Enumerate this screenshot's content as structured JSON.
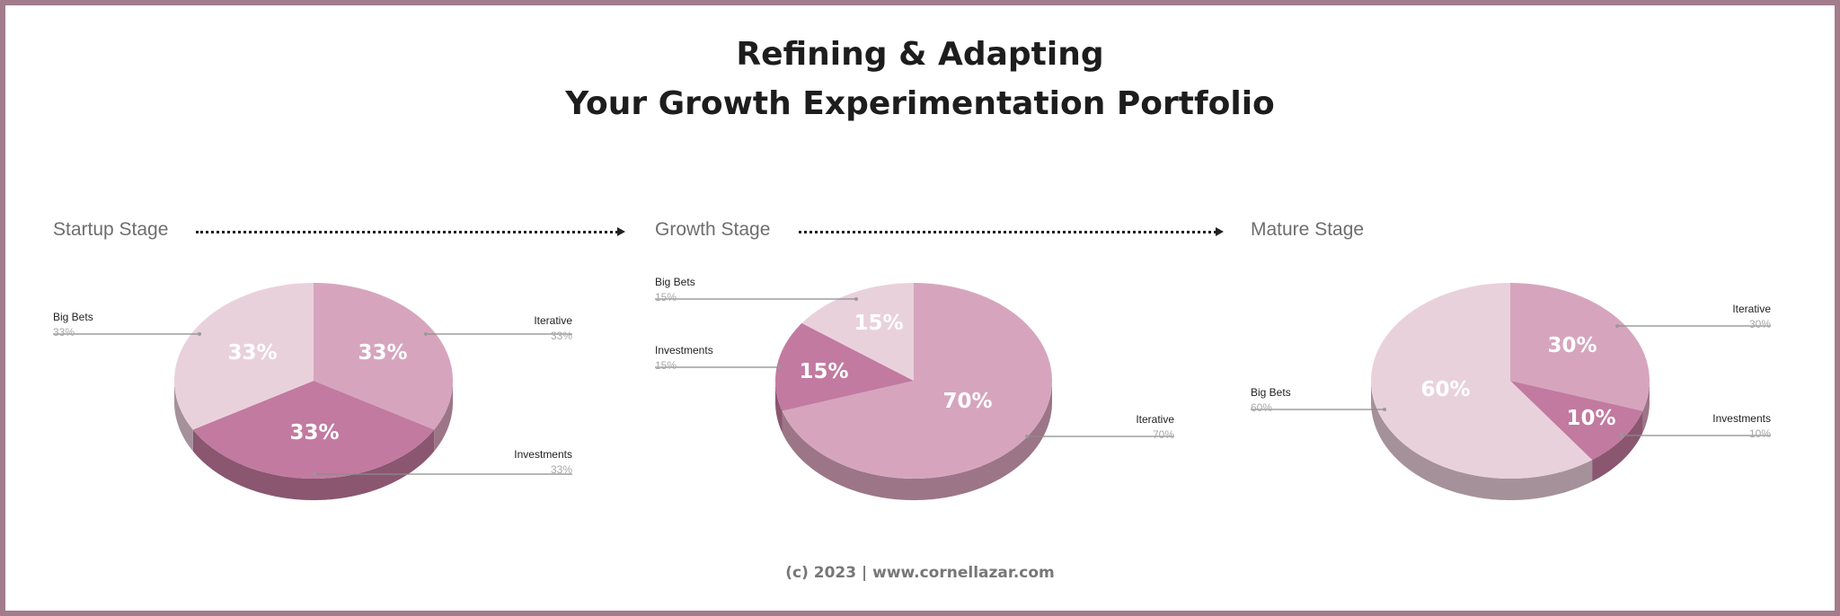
{
  "title": {
    "line1": "Refining & Adapting",
    "line2": "Your Growth Experimentation Portfolio"
  },
  "footer": "(c) 2023 | www.cornellazar.com",
  "colors": {
    "Iterative": "#d6a5bd",
    "Investments": "#c27aa0",
    "Big Bets": "#e9d1dc",
    "side_Iterative": "#9c7586",
    "side_Investments": "#8a5670",
    "side_Big Bets": "#a5919a"
  },
  "chart_data": [
    {
      "type": "pie",
      "title": "Startup Stage",
      "slices": [
        {
          "label": "Iterative",
          "value": 33,
          "text": "33%"
        },
        {
          "label": "Investments",
          "value": 33,
          "text": "33%"
        },
        {
          "label": "Big Bets",
          "value": 33,
          "text": "33%"
        }
      ]
    },
    {
      "type": "pie",
      "title": "Growth Stage",
      "slices": [
        {
          "label": "Iterative",
          "value": 70,
          "text": "70%"
        },
        {
          "label": "Investments",
          "value": 15,
          "text": "15%"
        },
        {
          "label": "Big Bets",
          "value": 15,
          "text": "15%"
        }
      ]
    },
    {
      "type": "pie",
      "title": "Mature Stage",
      "slices": [
        {
          "label": "Iterative",
          "value": 30,
          "text": "30%"
        },
        {
          "label": "Investments",
          "value": 10,
          "text": "10%"
        },
        {
          "label": "Big Bets",
          "value": 60,
          "text": "60%"
        }
      ]
    }
  ]
}
